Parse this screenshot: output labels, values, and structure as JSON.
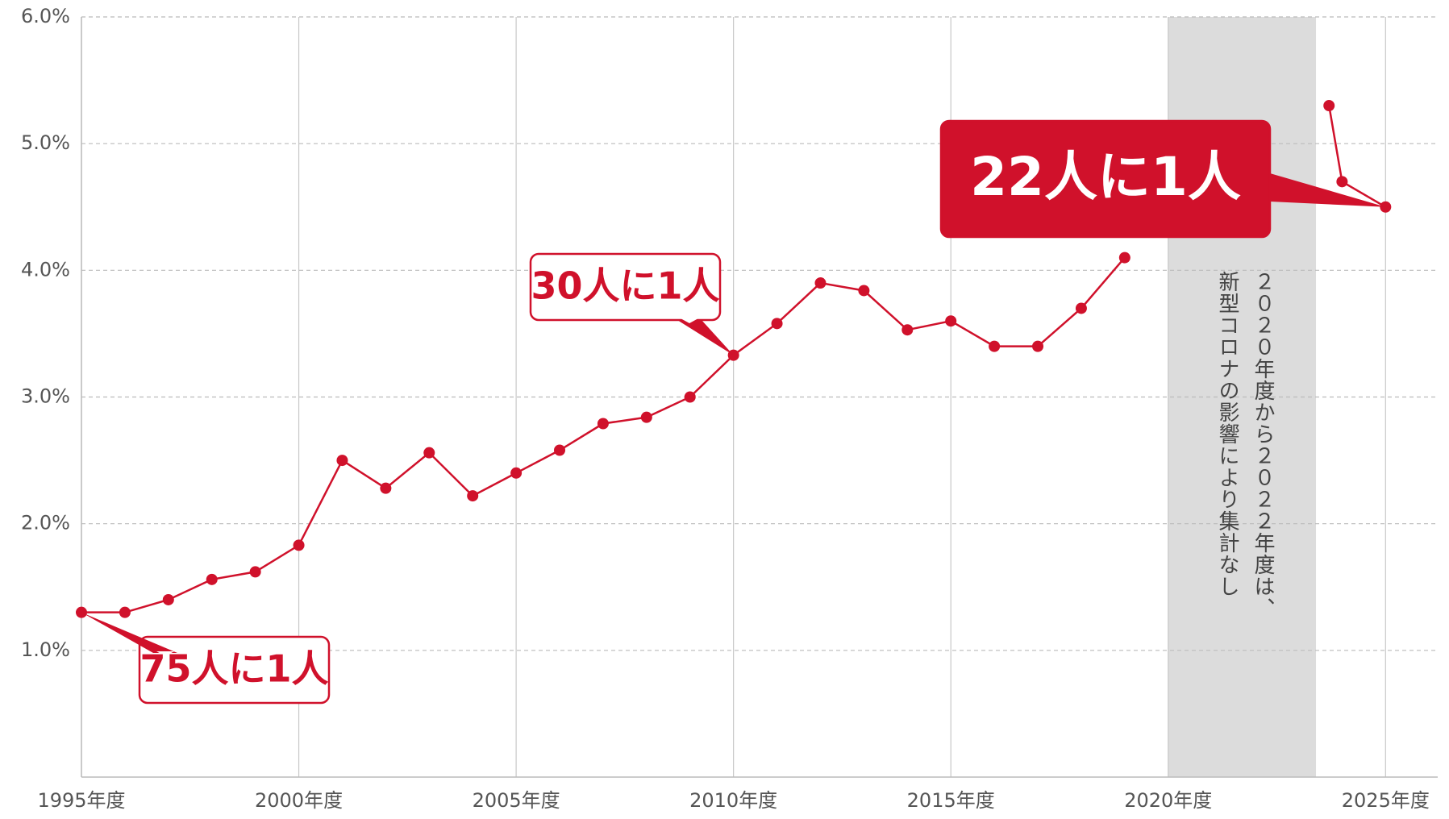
{
  "chart_data": {
    "type": "line",
    "x": [
      1995,
      1996,
      1997,
      1998,
      1999,
      2000,
      2001,
      2002,
      2003,
      2004,
      2005,
      2006,
      2007,
      2008,
      2009,
      2010,
      2011,
      2012,
      2013,
      2014,
      2015,
      2016,
      2017,
      2018,
      2019,
      2020,
      2021,
      2022,
      2023.7,
      2024,
      2025
    ],
    "series": [
      {
        "color": "#d0112b",
        "values": [
          1.3,
          1.3,
          1.4,
          1.56,
          1.62,
          1.83,
          2.5,
          2.28,
          2.56,
          2.22,
          2.4,
          2.58,
          2.79,
          2.84,
          3.0,
          3.33,
          3.58,
          3.9,
          3.84,
          3.53,
          3.6,
          3.4,
          3.4,
          3.7,
          4.1,
          null,
          null,
          null,
          5.3,
          4.7,
          4.5
        ]
      }
    ],
    "xlim": [
      1995,
      2026.2
    ],
    "xticks": [
      {
        "value": 1995,
        "label": "1995年度"
      },
      {
        "value": 2000,
        "label": "2000年度"
      },
      {
        "value": 2005,
        "label": "2005年度"
      },
      {
        "value": 2010,
        "label": "2010年度"
      },
      {
        "value": 2015,
        "label": "2015年度"
      },
      {
        "value": 2020,
        "label": "2020年度"
      },
      {
        "value": 2025,
        "label": "2025年度"
      }
    ],
    "ylim": [
      0,
      6
    ],
    "yticks": [
      {
        "value": 1,
        "label": "1.0%"
      },
      {
        "value": 2,
        "label": "2.0%"
      },
      {
        "value": 3,
        "label": "3.0%"
      },
      {
        "value": 4,
        "label": "4.0%"
      },
      {
        "value": 5,
        "label": "5.0%"
      },
      {
        "value": 6,
        "label": "6.0%"
      }
    ],
    "grid": true,
    "shaded_region": {
      "x": [
        2020,
        2023.4
      ],
      "color": "#dcdcdc",
      "lines": [
        "２０２０年度から２０２２年度は、",
        "新型コロナの影響により集計なし"
      ]
    },
    "annotations": [
      "75人に1人",
      "30人に1人",
      "22人に1人"
    ]
  }
}
